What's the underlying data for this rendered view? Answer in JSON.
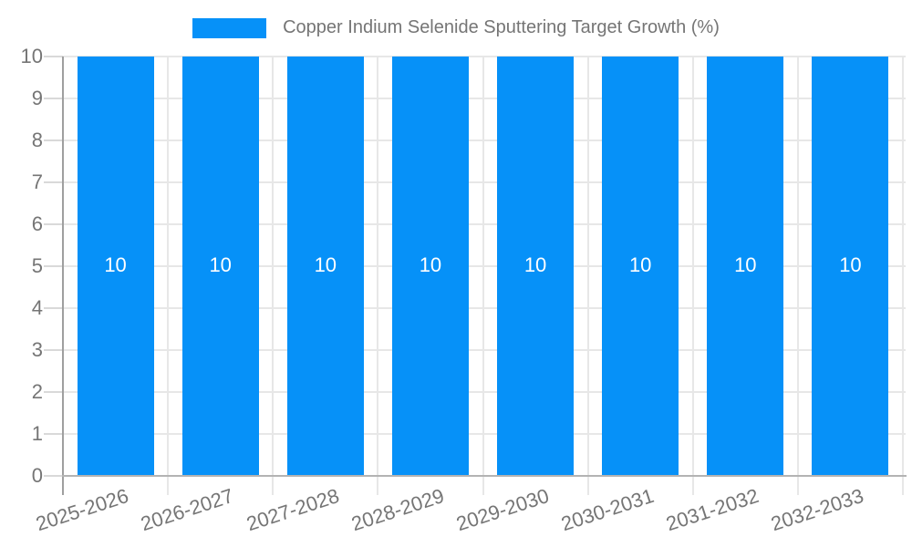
{
  "chart_data": {
    "type": "bar",
    "title": "Copper Indium Selenide Sputtering Target Growth (%)",
    "categories": [
      "2025-2026",
      "2026-2027",
      "2027-2028",
      "2028-2029",
      "2029-2030",
      "2030-2031",
      "2031-2032",
      "2032-2033"
    ],
    "series": [
      {
        "name": "Copper Indium Selenide Sputtering Target Growth (%)",
        "values": [
          10,
          10,
          10,
          10,
          10,
          10,
          10,
          10
        ]
      }
    ],
    "bar_value_labels": [
      "10",
      "10",
      "10",
      "10",
      "10",
      "10",
      "10",
      "10"
    ],
    "xlabel": "",
    "ylabel": "",
    "ylim": [
      0,
      10
    ],
    "yticks": [
      0,
      1,
      2,
      3,
      4,
      5,
      6,
      7,
      8,
      9,
      10
    ],
    "grid": true,
    "legend_position": "top",
    "colors": {
      "bar": "#0691f8",
      "grid": "#e7e7e7",
      "tick": "#d9d9d9",
      "axis": "#9f9f9f",
      "baseline": "#b3b3b3",
      "text": "#757575",
      "value_text": "#ffffff"
    }
  }
}
